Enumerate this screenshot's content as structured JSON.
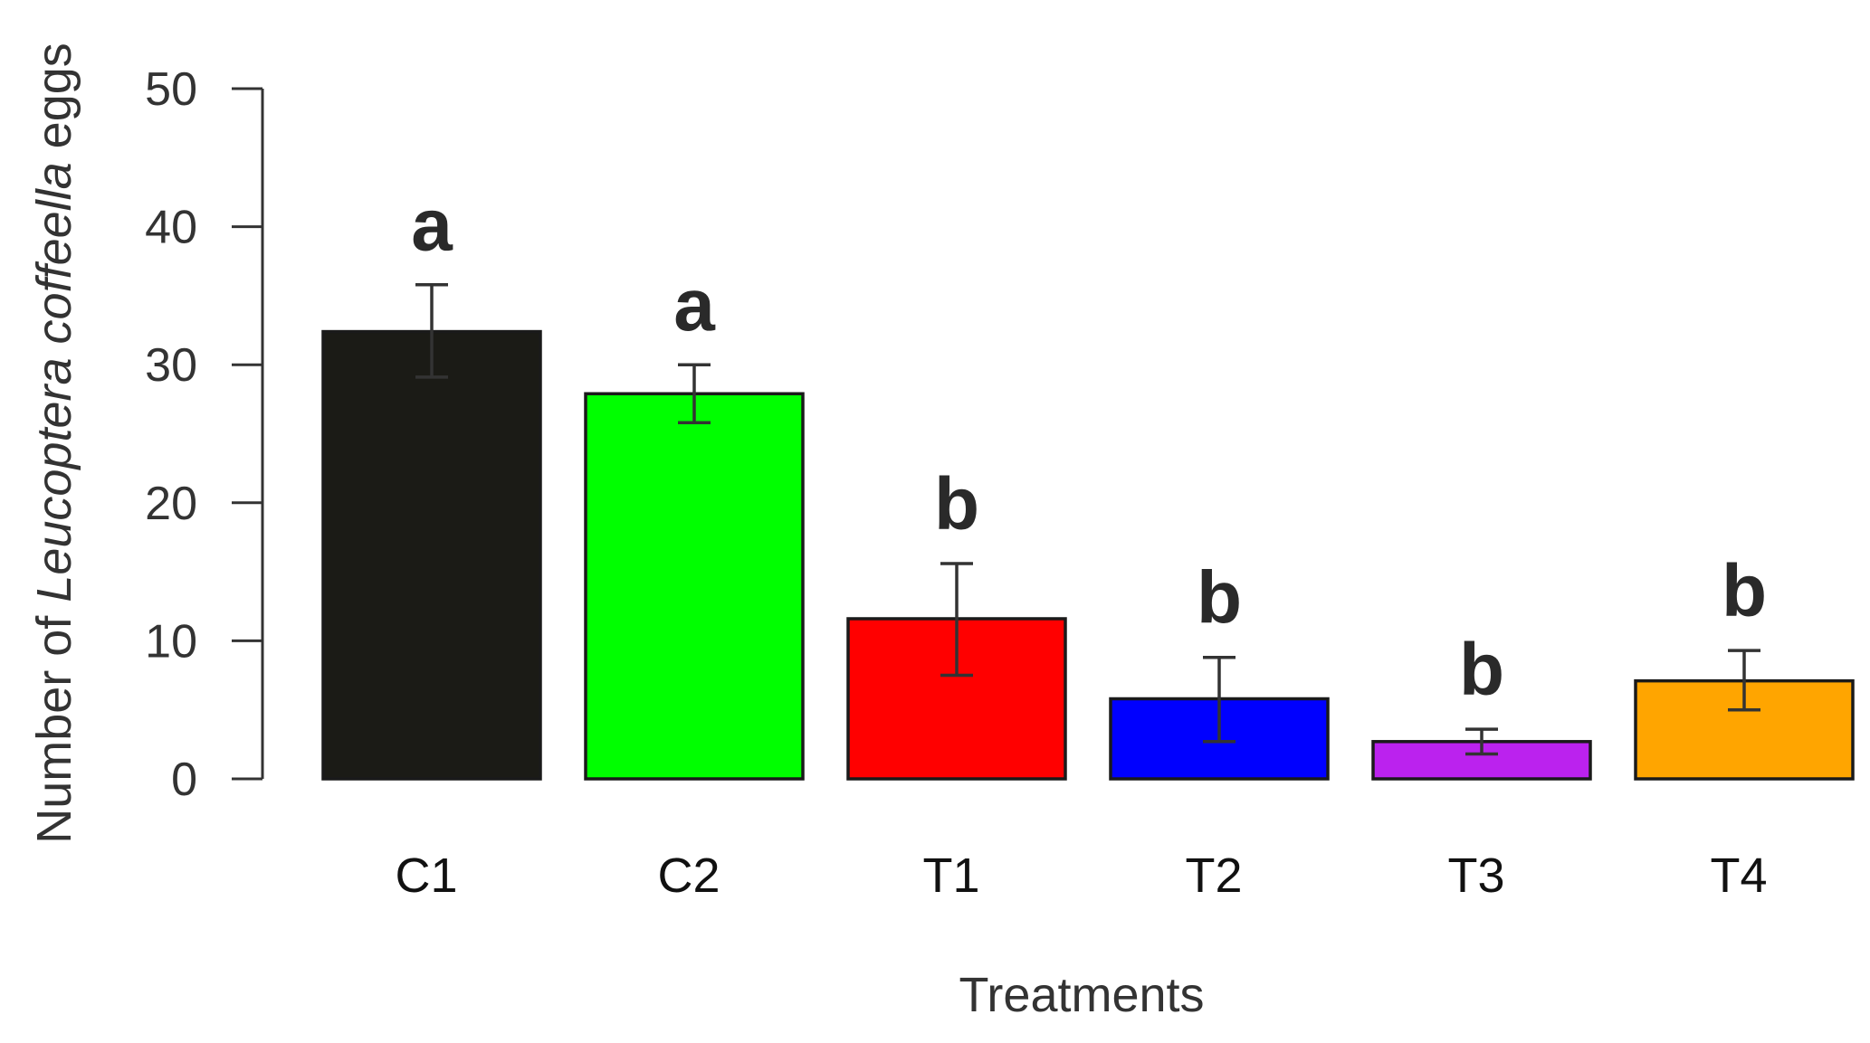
{
  "chart_data": {
    "type": "bar",
    "categories": [
      "C1",
      "C2",
      "T1",
      "T2",
      "T3",
      "T4"
    ],
    "values": [
      32.4,
      27.9,
      11.6,
      5.8,
      2.7,
      7.1
    ],
    "errors": [
      {
        "low": 29.1,
        "high": 35.8
      },
      {
        "low": 25.8,
        "high": 30.0
      },
      {
        "low": 7.5,
        "high": 15.6
      },
      {
        "low": 2.7,
        "high": 8.8
      },
      {
        "low": 1.8,
        "high": 3.6
      },
      {
        "low": 5.0,
        "high": 9.3
      }
    ],
    "significance": [
      "a",
      "a",
      "b",
      "b",
      "b",
      "b"
    ],
    "colors": [
      "#1b1b16",
      "#00ff00",
      "#ff0000",
      "#0000ff",
      "#bb22ee",
      "#ffa500"
    ],
    "ylabel_prefix": "Number of ",
    "ylabel_italic": "Leucoptera coffeella",
    "ylabel_suffix": " eggs",
    "xlabel": "Treatments",
    "ylim": [
      0,
      50
    ],
    "yticks": [
      0,
      10,
      20,
      30,
      40,
      50
    ]
  }
}
